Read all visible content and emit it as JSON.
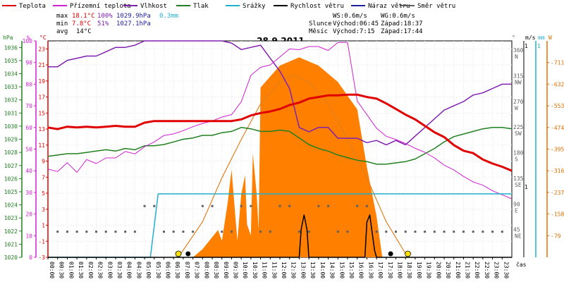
{
  "legend": [
    {
      "label": "Teplota",
      "color": "#e00000"
    },
    {
      "label": "Přízemní teplota",
      "color": "#d020d0"
    },
    {
      "label": "Vlhkost",
      "color": "#8020b0"
    },
    {
      "label": "Tlak",
      "color": "#208020"
    },
    {
      "label": "Srážky",
      "color": "#20b0d0"
    },
    {
      "label": "Rychlost větru",
      "color": "#000000"
    },
    {
      "label": "Náraz větru",
      "color": "#2020a0"
    },
    {
      "label": "Směr větru",
      "color": "#606060"
    }
  ],
  "stats": {
    "max_label": "max",
    "max_temp": "18.1°C",
    "max_hum": "100%",
    "max_press": "1029.9hPa",
    "rain": "0.3mm",
    "min_label": "min",
    "min_temp": "7.8°C",
    "min_hum": "51%",
    "min_press": "1027.1hPa",
    "avg_label": "avg",
    "avg_temp": "14°C"
  },
  "wind": {
    "ws": "WS:0.6m/s",
    "wg": "WG:0.6m/s"
  },
  "sun": {
    "label": "Slunce",
    "rise": "Východ:06:45",
    "set": "Západ:18:37"
  },
  "moon": {
    "label": "Měsíc",
    "rise": "Východ:7:15",
    "set": "Západ:17:44"
  },
  "axis_units": {
    "hpa": "hPa",
    "percent": "%",
    "celsius": "°C",
    "degree": "°",
    "ms": "m/s",
    "mm": "mm",
    "watt": "W",
    "cas": "čas"
  },
  "chart_data": {
    "type": "line",
    "title": "28.9.2011",
    "x_ticks": [
      "00:00",
      "00:30",
      "01:00",
      "01:30",
      "02:00",
      "02:30",
      "03:00",
      "03:30",
      "04:00",
      "04:30",
      "05:00",
      "05:30",
      "06:00",
      "06:30",
      "07:00",
      "07:30",
      "08:00",
      "08:30",
      "09:00",
      "09:30",
      "10:00",
      "10:30",
      "11:00",
      "11:30",
      "12:00",
      "12:30",
      "13:00",
      "13:30",
      "14:00",
      "14:30",
      "15:00",
      "15:30",
      "16:00",
      "16:30",
      "17:00",
      "17:30",
      "18:00",
      "18:30",
      "19:00",
      "19:30",
      "20:00",
      "20:30",
      "21:00",
      "21:30",
      "22:00",
      "22:30",
      "23:00",
      "23:30"
    ],
    "axes": {
      "pressure_hpa": [
        "1036",
        "1035",
        "1034",
        "1033",
        "1032",
        "1031",
        "1030",
        "1029",
        "1028",
        "1027",
        "1026",
        "1025",
        "1024",
        "1023",
        "1022",
        "1021",
        "1020"
      ],
      "humidity_pct": [
        "100",
        "90",
        "80",
        "70",
        "60",
        "50",
        "40",
        "30",
        "20",
        "10",
        "0"
      ],
      "temp_c": [
        "23",
        "21",
        "19",
        "17",
        "15",
        "13",
        "11",
        "9",
        "7",
        "5",
        "3",
        "1",
        "-1",
        "-3"
      ],
      "direction": [
        {
          "deg": "360",
          "dir": "N"
        },
        {
          "deg": "315",
          "dir": "NW"
        },
        {
          "deg": "270",
          "dir": "W"
        },
        {
          "deg": "225",
          "dir": "SW"
        },
        {
          "deg": "180",
          "dir": "S"
        },
        {
          "deg": "135",
          "dir": "SE"
        },
        {
          "deg": "90",
          "dir": "E"
        },
        {
          "deg": "45",
          "dir": "NE"
        }
      ],
      "wind_speed": "1",
      "rain_mm": "1",
      "radiation_w": [
        "711",
        "632",
        "553",
        "474",
        "395",
        "316",
        "237",
        "158",
        "79"
      ]
    },
    "ranges": {
      "temp_c": [
        -3,
        24
      ],
      "humidity_pct": [
        0,
        100
      ],
      "pressure_hpa": [
        1020,
        1036.5
      ],
      "direction_deg": [
        0,
        380
      ],
      "radiation_w": [
        0,
        790
      ]
    },
    "series": [
      {
        "name": "Teplota",
        "unit": "°C",
        "x": [
          0,
          0.5,
          1,
          1.5,
          2,
          2.5,
          3,
          3.5,
          4,
          4.5,
          5,
          5.5,
          6,
          6.5,
          7,
          7.5,
          8,
          8.5,
          9,
          9.5,
          10,
          10.5,
          11,
          11.5,
          12,
          12.5,
          13,
          13.5,
          14,
          14.5,
          15,
          15.5,
          16,
          16.5,
          17,
          17.5,
          18,
          18.5,
          19,
          19.5,
          20,
          20.5,
          21,
          21.5,
          22,
          22.5,
          23,
          23.5,
          24
        ],
        "y": [
          13.2,
          13.0,
          13.3,
          13.2,
          13.3,
          13.2,
          13.3,
          13.4,
          13.3,
          13.3,
          13.8,
          14.0,
          14.0,
          14.0,
          14.0,
          14.0,
          14.0,
          14.0,
          14.0,
          14.0,
          14.2,
          14.7,
          15.0,
          15.2,
          15.5,
          16.0,
          16.3,
          16.8,
          17.0,
          17.2,
          17.2,
          17.3,
          17.3,
          17.0,
          16.8,
          16.2,
          15.5,
          14.8,
          14.2,
          13.4,
          12.6,
          12.0,
          11.0,
          10.3,
          10.0,
          9.2,
          8.7,
          8.3,
          7.8
        ]
      },
      {
        "name": "Přízemní teplota",
        "unit": "°C",
        "x": [
          0,
          0.5,
          1,
          1.5,
          2,
          2.5,
          3,
          3.5,
          4,
          4.5,
          5,
          5.5,
          6,
          6.5,
          7,
          7.5,
          8,
          8.5,
          9,
          9.5,
          10,
          10.5,
          11,
          11.5,
          12,
          12.5,
          13,
          13.5,
          14,
          14.5,
          15,
          15.5,
          16,
          16.5,
          17,
          17.5,
          18,
          18.5,
          19,
          19.5,
          20,
          20.5,
          21,
          21.5,
          22,
          22.5,
          23,
          23.5,
          24
        ],
        "y": [
          8.0,
          7.7,
          8.8,
          7.6,
          9.2,
          8.7,
          9.4,
          9.4,
          10.2,
          9.9,
          10.8,
          11.4,
          12.2,
          12.4,
          12.8,
          13.3,
          13.7,
          14.0,
          14.5,
          14.8,
          16.4,
          19.7,
          20.7,
          21.0,
          22.0,
          23.0,
          22.9,
          23.3,
          23.3,
          22.8,
          23.8,
          23.8,
          16.5,
          14.8,
          13.1,
          12.1,
          11.7,
          11.2,
          10.6,
          10.1,
          9.4,
          8.5,
          7.9,
          7.1,
          6.4,
          6.0,
          5.3,
          4.8,
          4.3
        ]
      },
      {
        "name": "Vlhkost",
        "unit": "%",
        "x": [
          0,
          0.5,
          1,
          1.5,
          2,
          2.5,
          3,
          3.5,
          4,
          4.5,
          5,
          5.5,
          6,
          6.5,
          7,
          7.5,
          8,
          8.5,
          9,
          9.5,
          10,
          10.5,
          11,
          11.5,
          12,
          12.5,
          13,
          13.5,
          14,
          14.5,
          15,
          15.5,
          16,
          16.5,
          17,
          17.5,
          18,
          18.5,
          19,
          19.5,
          20,
          20.5,
          21,
          21.5,
          22,
          22.5,
          23,
          23.5,
          24
        ],
        "y": [
          88,
          88,
          91,
          92,
          93,
          93,
          95,
          97,
          97,
          98,
          100,
          100,
          100,
          100,
          100,
          100,
          100,
          100,
          100,
          99,
          96,
          97,
          98,
          92,
          86,
          78,
          60,
          58,
          60,
          60,
          55,
          55,
          55,
          53,
          54,
          52,
          54,
          52,
          56,
          60,
          64,
          68,
          70,
          72,
          75,
          76,
          78,
          80,
          80
        ]
      },
      {
        "name": "Tlak",
        "unit": "hPa",
        "x": [
          0,
          0.5,
          1,
          1.5,
          2,
          2.5,
          3,
          3.5,
          4,
          4.5,
          5,
          5.5,
          6,
          6.5,
          7,
          7.5,
          8,
          8.5,
          9,
          9.5,
          10,
          10.5,
          11,
          11.5,
          12,
          12.5,
          13,
          13.5,
          14,
          14.5,
          15,
          15.5,
          16,
          16.5,
          17,
          17.5,
          18,
          18.5,
          19,
          19.5,
          20,
          20.5,
          21,
          21.5,
          22,
          22.5,
          23,
          23.5,
          24
        ],
        "y": [
          1027.7,
          1027.8,
          1027.9,
          1027.9,
          1028.0,
          1028.1,
          1028.2,
          1028.1,
          1028.3,
          1028.2,
          1028.5,
          1028.5,
          1028.6,
          1028.8,
          1029.0,
          1029.1,
          1029.3,
          1029.3,
          1029.5,
          1029.6,
          1029.9,
          1029.8,
          1029.6,
          1029.6,
          1029.7,
          1029.6,
          1029.1,
          1028.6,
          1028.3,
          1028.1,
          1027.8,
          1027.6,
          1027.4,
          1027.3,
          1027.1,
          1027.1,
          1027.2,
          1027.3,
          1027.5,
          1027.9,
          1028.3,
          1028.8,
          1029.2,
          1029.4,
          1029.6,
          1029.8,
          1029.9,
          1029.9,
          1029.8
        ]
      },
      {
        "name": "Srážky",
        "unit": "mm",
        "x": [
          0,
          5.3,
          5.7,
          24
        ],
        "y": [
          0,
          0,
          0.3,
          0.3
        ]
      },
      {
        "name": "Rychlost větru",
        "unit": "m/s",
        "x": [
          0,
          13,
          13.1,
          13.25,
          13.4,
          13.5,
          14,
          16.4,
          16.5,
          16.65,
          16.8,
          16.9,
          17,
          24
        ],
        "y": [
          0,
          0,
          0.4,
          0.6,
          0.4,
          0,
          0,
          0,
          0.5,
          0.6,
          0.3,
          0.1,
          0,
          0
        ]
      },
      {
        "name": "Náraz větru",
        "unit": "m/s",
        "x": [
          0,
          13,
          13.1,
          13.25,
          13.4,
          13.5,
          14,
          16.4,
          16.5,
          16.65,
          16.8,
          16.9,
          17,
          24
        ],
        "y": [
          0,
          0,
          0.4,
          0.6,
          0.4,
          0,
          0,
          0,
          0.5,
          0.6,
          0.3,
          0.1,
          0,
          0
        ]
      },
      {
        "name": "Směr větru",
        "unit": "°",
        "x": [
          0,
          1,
          2,
          3,
          4,
          5,
          6,
          7,
          8,
          9,
          10,
          11,
          12,
          13,
          14,
          15,
          16,
          17,
          18,
          19,
          20,
          21,
          22,
          23
        ],
        "y": [
          45,
          45,
          45,
          45,
          45,
          90,
          45,
          45,
          90,
          45,
          90,
          45,
          90,
          45,
          90,
          45,
          90,
          45,
          45,
          45,
          45,
          45,
          45,
          45
        ]
      },
      {
        "name": "Sluneční záření",
        "unit": "W",
        "x": [
          0,
          7.5,
          8,
          8.8,
          9,
          9.3,
          9.5,
          9.8,
          10,
          10.2,
          10.3,
          10.5,
          10.6,
          10.8,
          10.9,
          11,
          12,
          13,
          14,
          15,
          16,
          16.5,
          17,
          17.3,
          24
        ],
        "y": [
          0,
          0,
          30,
          100,
          60,
          200,
          320,
          60,
          230,
          300,
          120,
          80,
          380,
          230,
          100,
          620,
          700,
          730,
          700,
          640,
          540,
          330,
          150,
          0,
          0
        ]
      },
      {
        "name": "Teoretické záření",
        "unit": "W",
        "x": [
          6.75,
          8,
          9,
          10,
          11,
          12,
          12.7,
          13.5,
          14.5,
          15.5,
          16.5,
          17.5,
          18.62
        ],
        "y": [
          0,
          130,
          290,
          430,
          560,
          640,
          665,
          640,
          560,
          430,
          290,
          130,
          0
        ]
      }
    ]
  }
}
